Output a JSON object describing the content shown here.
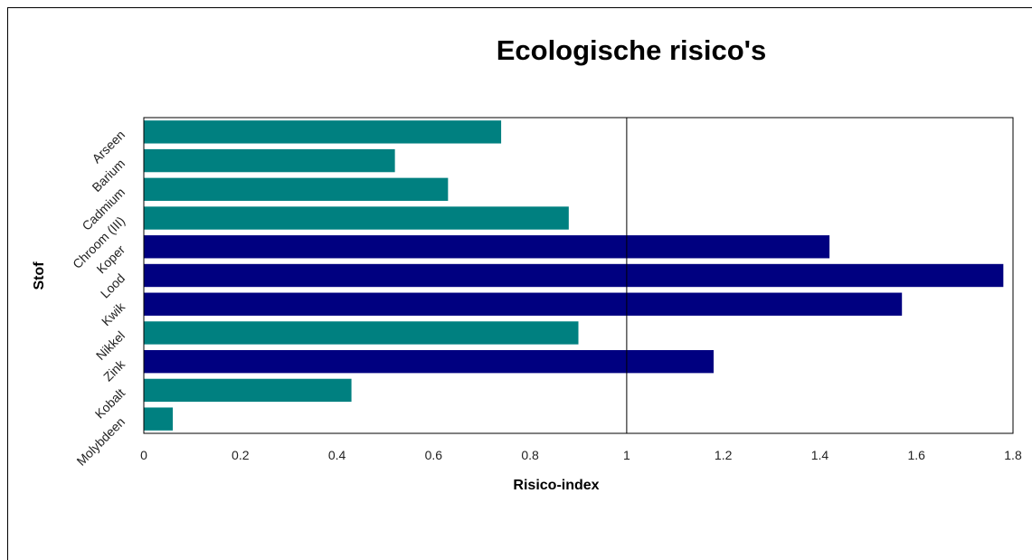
{
  "chart_data": {
    "type": "bar",
    "orientation": "horizontal",
    "title": "Ecologische risico's",
    "xlabel": "Risico-index",
    "ylabel": "Stof",
    "xlim": [
      0,
      1.8
    ],
    "xticks": [
      "0",
      "0.2",
      "0.4",
      "0.6",
      "0.8",
      "1",
      "1.2",
      "1.4",
      "1.6",
      "1.8"
    ],
    "reference_line": 1,
    "grid": false,
    "legend": "none",
    "colors": {
      "below_threshold": "#008080",
      "above_threshold": "#000080"
    },
    "categories": [
      "Arseen",
      "Barium",
      "Cadmium",
      "Chroom (III)",
      "Koper",
      "Lood",
      "Kwik",
      "Nikkel",
      "Zink",
      "Kobalt",
      "Molybdeen"
    ],
    "values": [
      0.74,
      0.52,
      0.63,
      0.88,
      1.42,
      1.78,
      1.57,
      0.9,
      1.18,
      0.43,
      0.06
    ]
  }
}
